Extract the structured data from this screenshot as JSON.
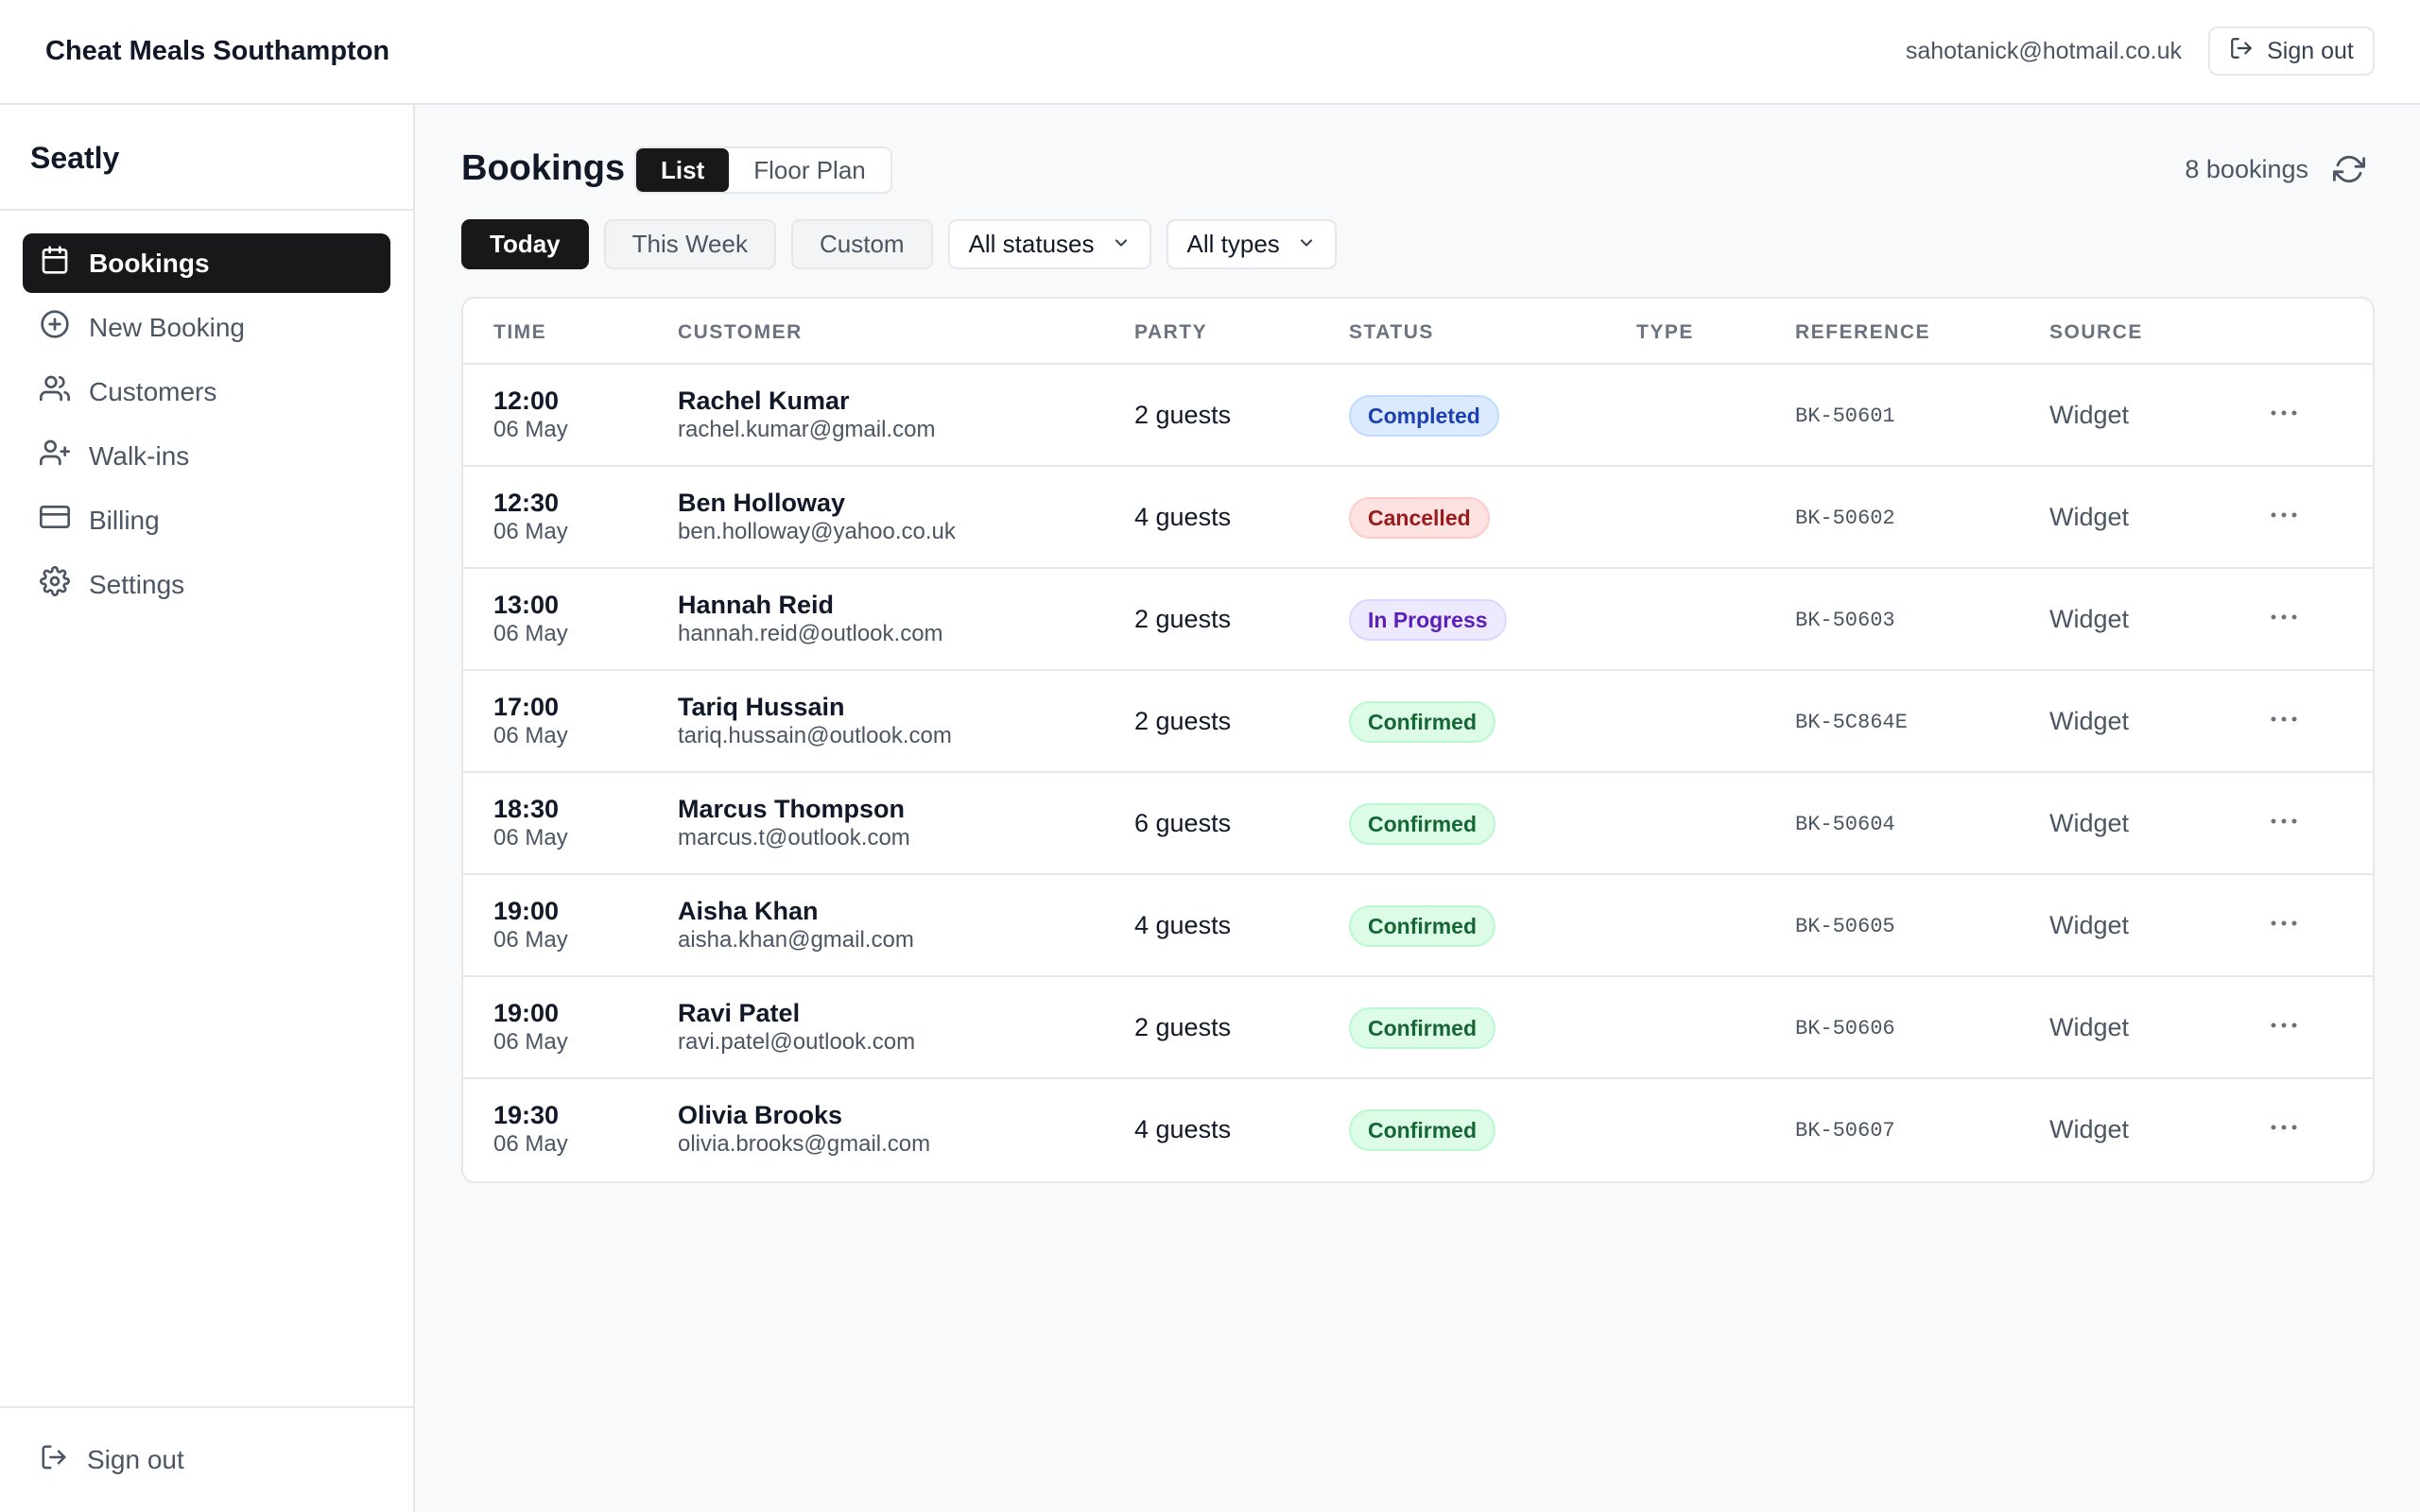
{
  "topbar": {
    "org_name": "Cheat Meals Southampton",
    "user_email": "sahotanick@hotmail.co.uk",
    "signout_label": "Sign out"
  },
  "sidebar": {
    "brand": "Seatly",
    "items": [
      {
        "label": "Bookings",
        "icon": "calendar-icon",
        "active": true
      },
      {
        "label": "New Booking",
        "icon": "plus-circle-icon",
        "active": false
      },
      {
        "label": "Customers",
        "icon": "users-icon",
        "active": false
      },
      {
        "label": "Walk-ins",
        "icon": "user-plus-icon",
        "active": false
      },
      {
        "label": "Billing",
        "icon": "credit-card-icon",
        "active": false
      },
      {
        "label": "Settings",
        "icon": "gear-icon",
        "active": false
      }
    ],
    "signout_label": "Sign out"
  },
  "main": {
    "title": "Bookings",
    "view_tabs": [
      "List",
      "Floor Plan"
    ],
    "active_view": "List",
    "count_label": "8 bookings",
    "filters": {
      "range_chips": [
        "Today",
        "This Week",
        "Custom"
      ],
      "active_range": "Today",
      "status_select": "All statuses",
      "type_select": "All types"
    }
  },
  "table": {
    "columns": [
      "TIME",
      "CUSTOMER",
      "PARTY",
      "STATUS",
      "TYPE",
      "REFERENCE",
      "SOURCE"
    ],
    "rows": [
      {
        "time": "12:00",
        "date": "06 May",
        "name": "Rachel Kumar",
        "email": "rachel.kumar@gmail.com",
        "party": "2 guests",
        "status": "Completed",
        "status_kind": "completed",
        "type": "",
        "reference": "BK-50601",
        "source": "Widget"
      },
      {
        "time": "12:30",
        "date": "06 May",
        "name": "Ben Holloway",
        "email": "ben.holloway@yahoo.co.uk",
        "party": "4 guests",
        "status": "Cancelled",
        "status_kind": "cancelled",
        "type": "",
        "reference": "BK-50602",
        "source": "Widget"
      },
      {
        "time": "13:00",
        "date": "06 May",
        "name": "Hannah Reid",
        "email": "hannah.reid@outlook.com",
        "party": "2 guests",
        "status": "In Progress",
        "status_kind": "inprogress",
        "type": "",
        "reference": "BK-50603",
        "source": "Widget"
      },
      {
        "time": "17:00",
        "date": "06 May",
        "name": "Tariq Hussain",
        "email": "tariq.hussain@outlook.com",
        "party": "2 guests",
        "status": "Confirmed",
        "status_kind": "confirmed",
        "type": "",
        "reference": "BK-5C864E",
        "source": "Widget"
      },
      {
        "time": "18:30",
        "date": "06 May",
        "name": "Marcus Thompson",
        "email": "marcus.t@outlook.com",
        "party": "6 guests",
        "status": "Confirmed",
        "status_kind": "confirmed",
        "type": "",
        "reference": "BK-50604",
        "source": "Widget"
      },
      {
        "time": "19:00",
        "date": "06 May",
        "name": "Aisha Khan",
        "email": "aisha.khan@gmail.com",
        "party": "4 guests",
        "status": "Confirmed",
        "status_kind": "confirmed",
        "type": "",
        "reference": "BK-50605",
        "source": "Widget"
      },
      {
        "time": "19:00",
        "date": "06 May",
        "name": "Ravi Patel",
        "email": "ravi.patel@outlook.com",
        "party": "2 guests",
        "status": "Confirmed",
        "status_kind": "confirmed",
        "type": "",
        "reference": "BK-50606",
        "source": "Widget"
      },
      {
        "time": "19:30",
        "date": "06 May",
        "name": "Olivia Brooks",
        "email": "olivia.brooks@gmail.com",
        "party": "4 guests",
        "status": "Confirmed",
        "status_kind": "confirmed",
        "type": "",
        "reference": "BK-50607",
        "source": "Widget"
      }
    ]
  },
  "colors": {
    "accent_dark": "#18181b",
    "completed": "#1e40af",
    "cancelled": "#991b1b",
    "in_progress": "#5b21b6",
    "confirmed": "#166534"
  }
}
